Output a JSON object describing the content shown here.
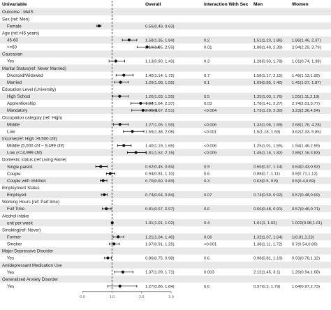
{
  "chart_data": {
    "type": "forest",
    "headers": {
      "variable": "Univariable",
      "overall": "Overall",
      "interaction": "Interaction With Sex",
      "men": "Men",
      "women": "Women"
    },
    "x_ticks": [
      "0.0",
      "1.0",
      "2.0",
      "3.0"
    ],
    "xlim": [
      0,
      3
    ],
    "reference_value": 1,
    "rows": [
      {
        "label": "Outcome : MetS",
        "kind": "section",
        "band": true
      },
      {
        "label": "Sex (ref: Men)",
        "kind": "section",
        "band": false
      },
      {
        "label": "Female",
        "kind": "item",
        "band": true,
        "estimate": 0.56,
        "lo": 0.49,
        "hi": 0.63,
        "overall": "0.56(0.49, 0.63)",
        "interaction": "",
        "men": "",
        "women": ""
      },
      {
        "label": "Age (ref:<45 years)",
        "kind": "section",
        "band": false
      },
      {
        "label": "45-60",
        "kind": "item",
        "band": true,
        "estimate": 1.58,
        "lo": 1.35,
        "hi": 1.84,
        "overall": "1.58(1.35, 1.84)",
        "interaction": "0.2",
        "men": "1.51(1.23, 1.86)",
        "women": "1.86(1.46, 2.37)"
      },
      {
        "label": ">=60",
        "kind": "item",
        "band": false,
        "estimate": 2.19,
        "lo": 1.85,
        "hi": 2.59,
        "overall": "2.19(1.85, 2.59)",
        "interaction": "0.01",
        "men": "1.88(1.48, 2.39)",
        "women": "2.94(2.29, 3.79)"
      },
      {
        "label": "Caucasian",
        "kind": "section",
        "band": true
      },
      {
        "label": "Yes",
        "kind": "item",
        "band": false,
        "estimate": 1.13,
        "lo": 0.9,
        "hi": 1.43,
        "overall": "1.13(0.90, 1.43)",
        "interaction": "0.3",
        "men": "1.28(0.93, 1.78)",
        "women": "1.01(0.74, 1.38)"
      },
      {
        "label": "Marital Status(ref: Never Married)",
        "kind": "section",
        "band": true
      },
      {
        "label": "Divorced/Widowed",
        "kind": "item",
        "band": false,
        "estimate": 1.4,
        "lo": 1.14,
        "hi": 1.72,
        "overall": "1.40(1.14, 1.72)",
        "interaction": "0.7",
        "men": "1.58(1.17, 2.15)",
        "women": "1.49(1.13,1.99)"
      },
      {
        "label": "Married",
        "kind": "item",
        "band": true,
        "estimate": 1.29,
        "lo": 1.08,
        "hi": 1.55,
        "overall": "1.29(1.08, 1.55)",
        "interaction": "0.1",
        "men": "1.09(0.85, 1.40)",
        "women": "1.41(1.07, 1.87)"
      },
      {
        "label": "Education Level (University)",
        "kind": "section",
        "band": false
      },
      {
        "label": "High School",
        "kind": "item",
        "band": true,
        "estimate": 1.26,
        "lo": 1.03,
        "hi": 1.55,
        "overall": "1.26(1.03, 1.55)",
        "interaction": "0.5",
        "men": "1.35(1.03, 1.76)",
        "women": "1.55(1.11,2.19)"
      },
      {
        "label": "Apprenticeship",
        "kind": "item",
        "band": false,
        "estimate": 1.97,
        "lo": 1.64,
        "hi": 2.37,
        "overall": "1.97(1.64, 2.37)",
        "interaction": "0.03",
        "men": "1.78(1.41, 2.27)",
        "women": "2.74(2.01,3.77)"
      },
      {
        "label": "Mandatory",
        "kind": "item",
        "band": true,
        "estimate": 2.05,
        "lo": 1.67,
        "hi": 2.51,
        "overall": "2.05(1.67, 2.51)",
        "interaction": "<0.004",
        "men": "1.73(1.29, 2.30)",
        "women": "3.23(2.36,4.54)"
      },
      {
        "label": "Occupation category (ref: High)",
        "kind": "section",
        "band": false
      },
      {
        "label": "Middle",
        "kind": "item",
        "band": true,
        "estimate": 1.27,
        "lo": 1.05,
        "hi": 1.55,
        "overall": "1.27(1.05, 1.55)",
        "interaction": "<0.006",
        "men": "1.33(1.06, 1.69)",
        "women": "2.68(1.76, 4.28)"
      },
      {
        "label": "Low",
        "kind": "item",
        "band": false,
        "estimate": 1.69,
        "lo": 1.38,
        "hi": 2.08,
        "overall": "1.69(1.38, 2.08)",
        "interaction": "<0.001",
        "men": "1.5(1.18, 1.93)",
        "women": "3.62(2.33, 5.85)"
      },
      {
        "label": "Income(ref: High >9,500 chf)",
        "kind": "section",
        "band": true
      },
      {
        "label": "Middle (5,000 chf – 9,499 chf)",
        "kind": "item",
        "band": false,
        "estimate": 1.4,
        "lo": 1.19,
        "hi": 1.65,
        "overall": "1.40(1.19, 1.65)",
        "interaction": "<0.006",
        "men": "1.25(1.01, 1.55)",
        "women": "1.94(1.46,2.59)"
      },
      {
        "label": "Low (<=4,999 chf)",
        "kind": "item",
        "band": true,
        "estimate": 1.81,
        "lo": 1.52,
        "hi": 2.15,
        "overall": "1.81(1.52, 2.15)",
        "interaction": "<0.009",
        "men": "1.45(1.16, 1.82)",
        "women": "2.86(2.16,3.83)"
      },
      {
        "label": "Domestic status (ref:Living Alone)",
        "kind": "section",
        "band": false
      },
      {
        "label": "Single parent",
        "kind": "item",
        "band": true,
        "estimate": 0.62,
        "lo": 0.45,
        "hi": 0.84,
        "overall": "0.62(0.45, 0.84)",
        "interaction": "0.9",
        "men": "0.66(0.37, 1.14)",
        "women": "0.64(0.43,0.92)"
      },
      {
        "label": "Couple",
        "kind": "item",
        "band": false,
        "estimate": 0.94,
        "lo": 0.81,
        "hi": 1.1,
        "overall": "0.94(0.81, 1.10)",
        "interaction": "0.6",
        "men": "0.88(0.7, 1.11)",
        "women": "0.9(0.71,1.12)"
      },
      {
        "label": "Couple with children",
        "kind": "item",
        "band": true,
        "estimate": 0.7,
        "lo": 0.6,
        "hi": 0.83,
        "overall": "0.70(0.60, 0.83)",
        "interaction": "0.3",
        "men": "0.63(0.5, 0.8)",
        "women": "0.5(0.4,0.69)"
      },
      {
        "label": "Employment Status",
        "kind": "section",
        "band": false
      },
      {
        "label": "Employed",
        "kind": "item",
        "band": true,
        "estimate": 0.74,
        "lo": 0.64,
        "hi": 0.84,
        "overall": "0.74(0.64, 0.84)",
        "interaction": "0.07",
        "men": "0.74(0.59, 0.92)",
        "women": "0.57(0.48,0.69)"
      },
      {
        "label": "Working Hours (ref: Part time)",
        "kind": "section",
        "band": false
      },
      {
        "label": "Full Time",
        "kind": "item",
        "band": true,
        "estimate": 0.81,
        "lo": 0.67,
        "hi": 0.97,
        "overall": "0.81(0.67, 0.97)",
        "interaction": "0.6",
        "men": "0.66(0.48, 0.91)",
        "women": "0.57(0.46,0.71)"
      },
      {
        "label": "Alcohol intake",
        "kind": "section",
        "band": false
      },
      {
        "label": "unit per week",
        "kind": "item",
        "band": true,
        "estimate": 1.01,
        "lo": 1.01,
        "hi": 1.02,
        "overall": "1.01(1.01, 1.02)",
        "interaction": "0.4",
        "men": "1.01(1, 1.02)",
        "women": "1.002(0.98,1.01)"
      },
      {
        "label": "Smoking(ref: Never)",
        "kind": "section",
        "band": false
      },
      {
        "label": "Former",
        "kind": "item",
        "band": true,
        "estimate": 1.21,
        "lo": 1.04,
        "hi": 1.4,
        "overall": "1.21(1.04, 1.40)",
        "interaction": "0.06",
        "men": "1.32(1.07, 1.64)",
        "women": "1(0.81,1.23)"
      },
      {
        "label": "Smoker",
        "kind": "item",
        "band": false,
        "estimate": 1.07,
        "lo": 0.91,
        "hi": 1.25,
        "overall": "1.07(0.91, 1.25)",
        "interaction": "<0.001",
        "men": "1.38(1.11, 1.72)",
        "women": "0.7(0.54,0.89)"
      },
      {
        "label": "Major Depressive Disorder",
        "kind": "section",
        "band": true
      },
      {
        "label": "Yes",
        "kind": "item",
        "band": false,
        "estimate": 0.86,
        "lo": 0.75,
        "hi": 0.98,
        "overall": "0.86(0.75, 0.98)",
        "interaction": "0.6",
        "men": "0.98(0.81, 1.19)",
        "women": "0.93(0.78,1.12)"
      },
      {
        "label": "Antidepressant Medication Use",
        "kind": "section",
        "band": true
      },
      {
        "label": "Yes",
        "kind": "item",
        "band": false,
        "estimate": 1.37,
        "lo": 1.09,
        "hi": 1.71,
        "overall": "1.37(1.09, 1.71)",
        "interaction": "0.003",
        "men": "2.12(1.45, 3.1)",
        "women": "1.26(0.94,1.68)"
      },
      {
        "label": "Generalized Anxiety Disorder",
        "kind": "section",
        "band": true
      },
      {
        "label": "Yes",
        "kind": "item",
        "band": false,
        "estimate": 1.27,
        "lo": 0.86,
        "hi": 1.84,
        "overall": "1.27(0.86, 1.84)",
        "interaction": "0.6",
        "men": "0.97(0.5, 1.79)",
        "women": "1.64(0.97,2.73)"
      }
    ]
  },
  "colors": {
    "band": "#e8e8e8",
    "text": "#1a1a1a",
    "marker": "#111111",
    "axis": "#555555",
    "reference_line": "#222222"
  }
}
